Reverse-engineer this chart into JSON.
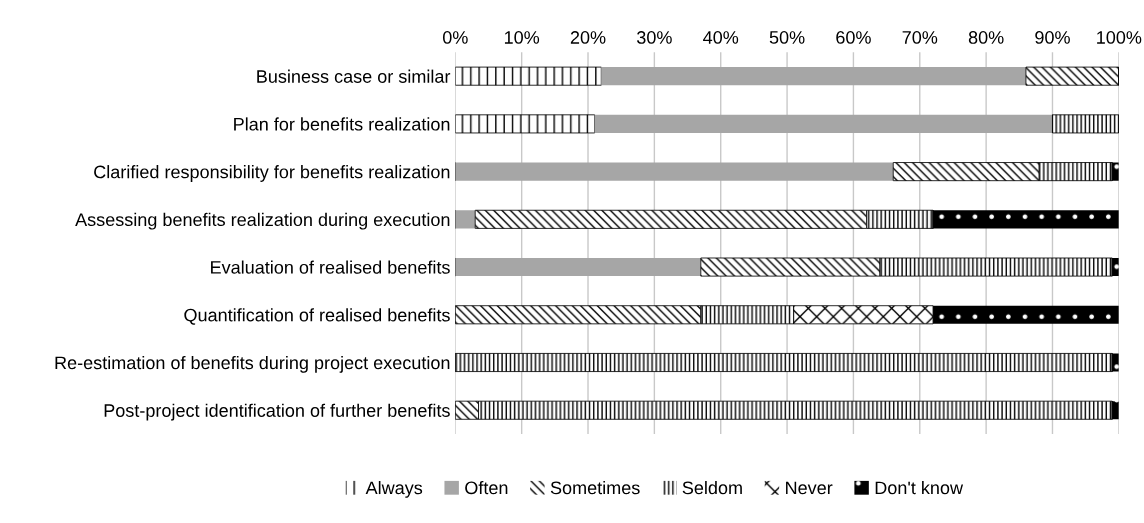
{
  "chart_data": {
    "type": "bar",
    "orientation": "horizontal",
    "stacked": true,
    "categories": [
      "Business case or similar",
      "Plan for benefits realization",
      "Clarified responsibility for benefits realization",
      "Assessing benefits realization during execution",
      "Evaluation of realised benefits",
      "Quantification of realised benefits",
      "Re-estimation of benefits during project execution",
      "Post-project identification of further benefits"
    ],
    "series": [
      {
        "name": "Always",
        "color": "#000000",
        "values": [
          22,
          21,
          0,
          0,
          0,
          0,
          0,
          0
        ]
      },
      {
        "name": "Often",
        "color": "#a6a6a6",
        "values": [
          64,
          69,
          66,
          3,
          37,
          0,
          0,
          0
        ]
      },
      {
        "name": "Sometimes",
        "color": "#000000",
        "values": [
          14,
          0,
          22,
          59,
          27,
          37,
          0,
          3.5
        ]
      },
      {
        "name": "Seldom",
        "color": "#000000",
        "values": [
          0,
          10,
          11,
          10,
          35,
          14,
          99,
          95.5
        ]
      },
      {
        "name": "Never",
        "color": "#000000",
        "values": [
          0,
          0,
          0,
          0,
          0,
          21,
          0,
          0
        ]
      },
      {
        "name": "Don't know",
        "color": "#000000",
        "values": [
          0,
          0,
          1,
          28,
          1,
          28,
          1,
          1
        ]
      }
    ],
    "xlim": [
      0,
      100
    ],
    "xticks": [
      {
        "value": 0,
        "label": "0%"
      },
      {
        "value": 10,
        "label": "10%"
      },
      {
        "value": 20,
        "label": "20%"
      },
      {
        "value": 30,
        "label": "30%"
      },
      {
        "value": 40,
        "label": "40%"
      },
      {
        "value": 50,
        "label": "50%"
      },
      {
        "value": 60,
        "label": "60%"
      },
      {
        "value": 70,
        "label": "70%"
      },
      {
        "value": 80,
        "label": "80%"
      },
      {
        "value": 90,
        "label": "90%"
      },
      {
        "value": 100,
        "label": "100%"
      }
    ],
    "grid": "x",
    "legend": "bottom"
  }
}
